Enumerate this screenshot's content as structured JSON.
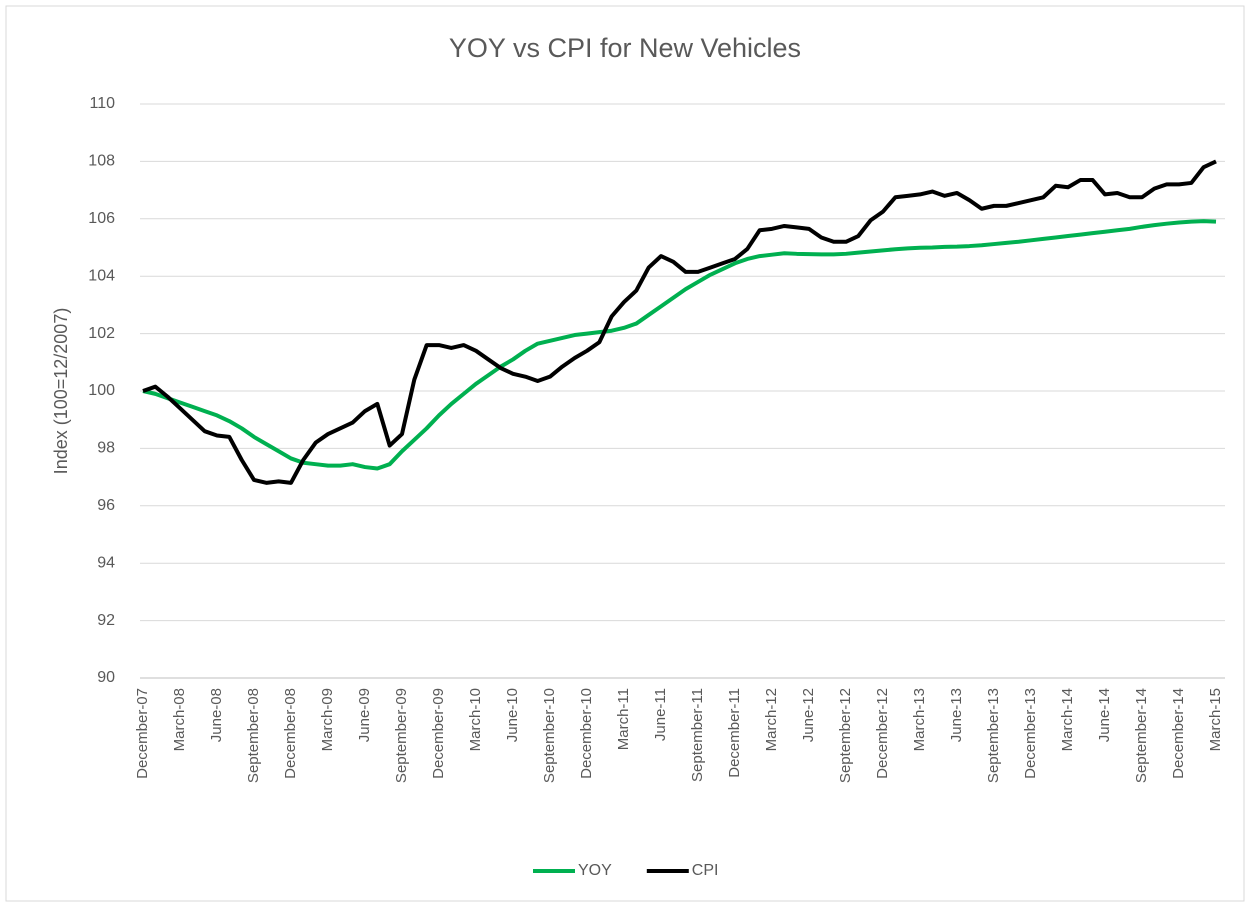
{
  "chart_data": {
    "type": "line",
    "title": "YOY vs CPI for New Vehicles",
    "y_label": "Index (100=12/2007)",
    "categories": [
      "December-07",
      null,
      null,
      "March-08",
      null,
      null,
      "June-08",
      null,
      null,
      "September-08",
      null,
      null,
      "December-08",
      null,
      null,
      "March-09",
      null,
      null,
      "June-09",
      null,
      null,
      "September-09",
      null,
      null,
      "December-09",
      null,
      null,
      "March-10",
      null,
      null,
      "June-10",
      null,
      null,
      "September-10",
      null,
      null,
      "December-10",
      null,
      null,
      "March-11",
      null,
      null,
      "June-11",
      null,
      null,
      "September-11",
      null,
      null,
      "December-11",
      null,
      null,
      "March-12",
      null,
      null,
      "June-12",
      null,
      null,
      "September-12",
      null,
      null,
      "December-12",
      null,
      null,
      "March-13",
      null,
      null,
      "June-13",
      null,
      null,
      "September-13",
      null,
      null,
      "December-13",
      null,
      null,
      "March-14",
      null,
      null,
      "June-14",
      null,
      null,
      "September-14",
      null,
      null,
      "December-14",
      null,
      null,
      "March-15"
    ],
    "series": [
      {
        "name": "YOY",
        "color": "#00b050",
        "values": [
          100,
          99.9,
          99.75,
          99.6,
          99.45,
          99.3,
          99.15,
          98.95,
          98.7,
          98.4,
          98.15,
          97.9,
          97.65,
          97.5,
          97.45,
          97.4,
          97.4,
          97.45,
          97.35,
          97.3,
          97.45,
          97.9,
          98.3,
          98.7,
          99.15,
          99.55,
          99.9,
          100.25,
          100.55,
          100.85,
          101.1,
          101.4,
          101.65,
          101.75,
          101.85,
          101.95,
          102.0,
          102.05,
          102.1,
          102.2,
          102.35,
          102.65,
          102.95,
          103.25,
          103.55,
          103.8,
          104.05,
          104.25,
          104.45,
          104.6,
          104.7,
          104.75,
          104.8,
          104.78,
          104.77,
          104.76,
          104.76,
          104.78,
          104.82,
          104.86,
          104.9,
          104.94,
          104.97,
          104.99,
          105.0,
          105.02,
          105.03,
          105.05,
          105.08,
          105.12,
          105.16,
          105.2,
          105.25,
          105.3,
          105.35,
          105.4,
          105.45,
          105.5,
          105.55,
          105.6,
          105.65,
          105.72,
          105.78,
          105.83,
          105.87,
          105.9,
          105.92,
          105.9
        ]
      },
      {
        "name": "CPI",
        "color": "#000000",
        "values": [
          100.0,
          100.15,
          99.8,
          99.4,
          99.0,
          98.6,
          98.45,
          98.4,
          97.6,
          96.9,
          96.8,
          96.85,
          96.8,
          97.6,
          98.2,
          98.5,
          98.7,
          98.9,
          99.3,
          99.55,
          98.1,
          98.5,
          100.4,
          101.6,
          101.6,
          101.5,
          101.6,
          101.4,
          101.1,
          100.8,
          100.6,
          100.5,
          100.35,
          100.5,
          100.85,
          101.15,
          101.4,
          101.7,
          102.6,
          103.1,
          103.5,
          104.3,
          104.7,
          104.5,
          104.15,
          104.15,
          104.3,
          104.45,
          104.6,
          104.95,
          105.6,
          105.65,
          105.75,
          105.7,
          105.65,
          105.35,
          105.2,
          105.2,
          105.4,
          105.95,
          106.25,
          106.75,
          106.8,
          106.85,
          106.95,
          106.8,
          106.9,
          106.65,
          106.35,
          106.45,
          106.45,
          106.55,
          106.65,
          106.75,
          107.15,
          107.1,
          107.35,
          107.35,
          106.85,
          106.9,
          106.75,
          106.75,
          107.05,
          107.2,
          107.2,
          107.25,
          107.8,
          108.0
        ]
      }
    ],
    "ylim": [
      90,
      110
    ],
    "yticks": [
      90,
      92,
      94,
      96,
      98,
      100,
      102,
      104,
      106,
      108,
      110
    ],
    "grid": true,
    "legend": "bottom"
  }
}
